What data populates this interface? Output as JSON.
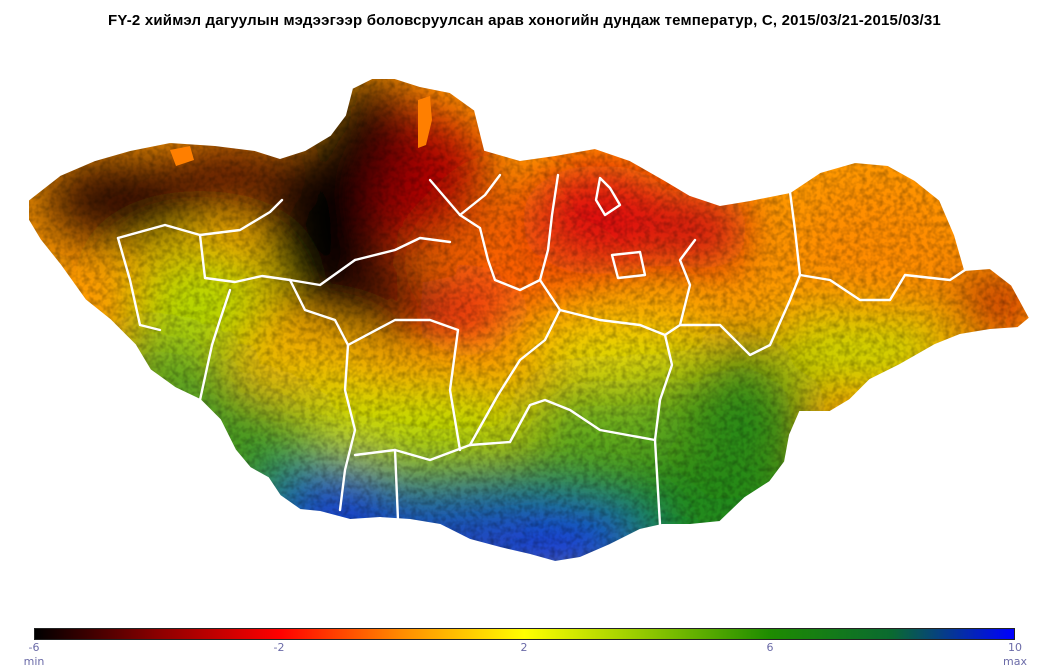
{
  "title": "FY-2 хиймэл дагуулын мэдээгээр боловсруулсан арав хоногийн дундаж температур, С, 2015/03/21-2015/03/31",
  "legend": {
    "colors": [
      "#000000",
      "#8b0000",
      "#ff0000",
      "#ff8c00",
      "#ffff00",
      "#90c800",
      "#1e8c00",
      "#0a6a30",
      "#0000ff"
    ],
    "ticks": [
      "-6",
      "-2",
      "2",
      "6",
      "10"
    ],
    "min_label": "min",
    "max_label": "max"
  }
}
